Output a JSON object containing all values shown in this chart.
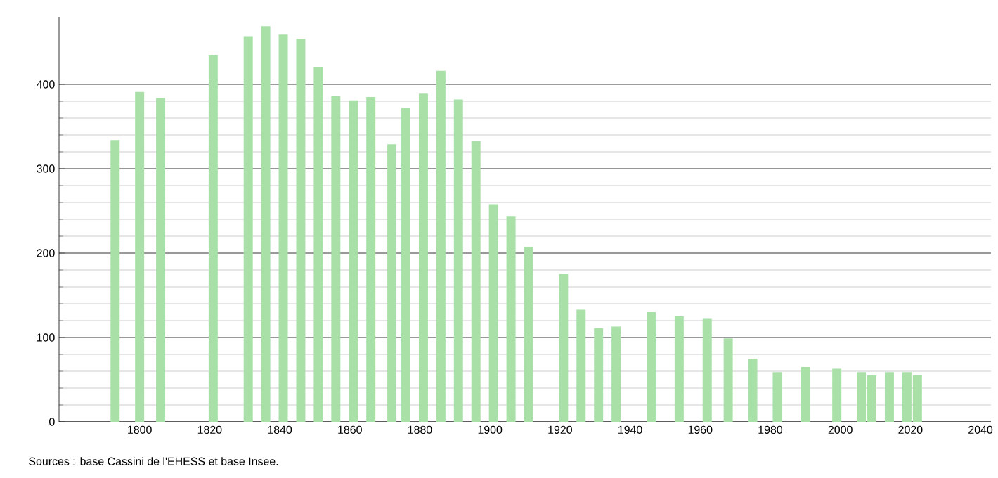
{
  "chart_data": {
    "type": "bar",
    "color": "#a8e0a8",
    "x": [
      "1793",
      "1800",
      "1806",
      "1821",
      "1831",
      "1836",
      "1841",
      "1846",
      "1851",
      "1856",
      "1861",
      "1866",
      "1872",
      "1876",
      "1881",
      "1886",
      "1891",
      "1896",
      "1901",
      "1906",
      "1911",
      "1921",
      "1926",
      "1931",
      "1936",
      "1946",
      "1954",
      "1962",
      "1968",
      "1975",
      "1982",
      "1990",
      "1999",
      "2006",
      "2009",
      "2014",
      "2019",
      "2022"
    ],
    "values": [
      334,
      391,
      384,
      435,
      457,
      469,
      459,
      454,
      420,
      386,
      381,
      385,
      329,
      372,
      389,
      416,
      382,
      333,
      258,
      244,
      207,
      175,
      133,
      111,
      113,
      130,
      125,
      122,
      99,
      75,
      59,
      65,
      63,
      59,
      55,
      59,
      59,
      55
    ],
    "xlim": [
      "1777",
      "2043"
    ],
    "xticks": [
      {
        "value": "1800",
        "label": "1800"
      },
      {
        "value": "1820",
        "label": "1820"
      },
      {
        "value": "1840",
        "label": "1840"
      },
      {
        "value": "1860",
        "label": "1860"
      },
      {
        "value": "1880",
        "label": "1880"
      },
      {
        "value": "1900",
        "label": "1900"
      },
      {
        "value": "1920",
        "label": "1920"
      },
      {
        "value": "1940",
        "label": "1940"
      },
      {
        "value": "1960",
        "label": "1960"
      },
      {
        "value": "1980",
        "label": "1980"
      },
      {
        "value": "2000",
        "label": "2000"
      },
      {
        "value": "2020",
        "label": "2020"
      },
      {
        "value": "2040",
        "label": "2040"
      }
    ],
    "ylim": [
      0,
      480
    ],
    "yticks": [
      0,
      100,
      200,
      300,
      400
    ],
    "grid": "y",
    "annotations": [
      "Sources : base Cassini de l'EHESS et base Insee."
    ]
  }
}
